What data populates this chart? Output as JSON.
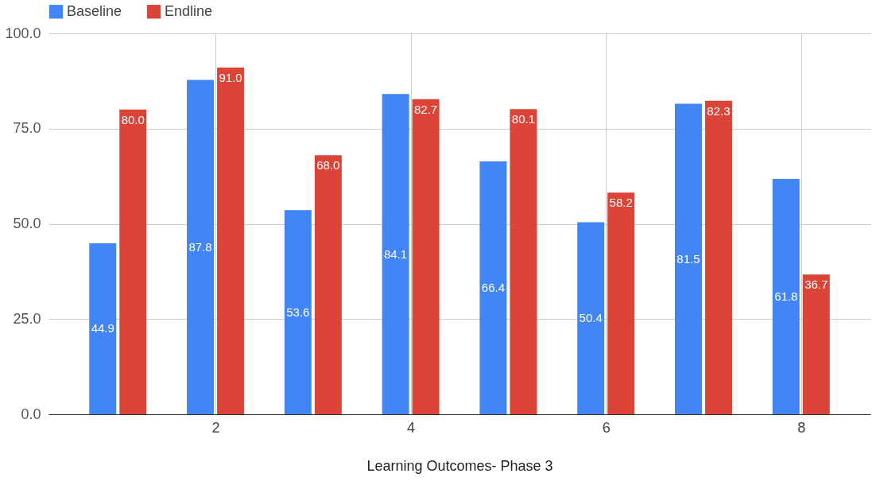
{
  "chart_data": {
    "type": "bar",
    "xlabel": "Learning Outcomes- Phase 3",
    "x": [
      1,
      2,
      3,
      4,
      5,
      6,
      7,
      8
    ],
    "series": [
      {
        "name": "Baseline",
        "color": "#4285f4",
        "values": [
          44.9,
          87.8,
          53.6,
          84.1,
          66.4,
          50.4,
          81.5,
          61.8
        ],
        "value_labels": [
          "44.9",
          "87.8",
          "53.6",
          "84.1",
          "66.4",
          "50.4",
          "81.5",
          "61.8"
        ]
      },
      {
        "name": "Endline",
        "color": "#db4437",
        "values": [
          80.0,
          91.0,
          68.0,
          82.7,
          80.1,
          58.2,
          82.3,
          36.7
        ],
        "value_labels": [
          "80.0",
          "91.0",
          "68.0",
          "82.7",
          "80.1",
          "58.2",
          "82.3",
          "36.7"
        ]
      }
    ],
    "xlim": [
      0.33,
      8.67
    ],
    "xticks": [
      2,
      4,
      6,
      8
    ],
    "ylim": [
      0,
      100
    ],
    "yticks": [
      {
        "value": 0,
        "label": "0.0"
      },
      {
        "value": 25,
        "label": "25.0"
      },
      {
        "value": 50,
        "label": "50.0"
      },
      {
        "value": 75,
        "label": "75.0"
      },
      {
        "value": 100,
        "label": "100.0"
      }
    ],
    "grid": true,
    "legend": "top"
  }
}
